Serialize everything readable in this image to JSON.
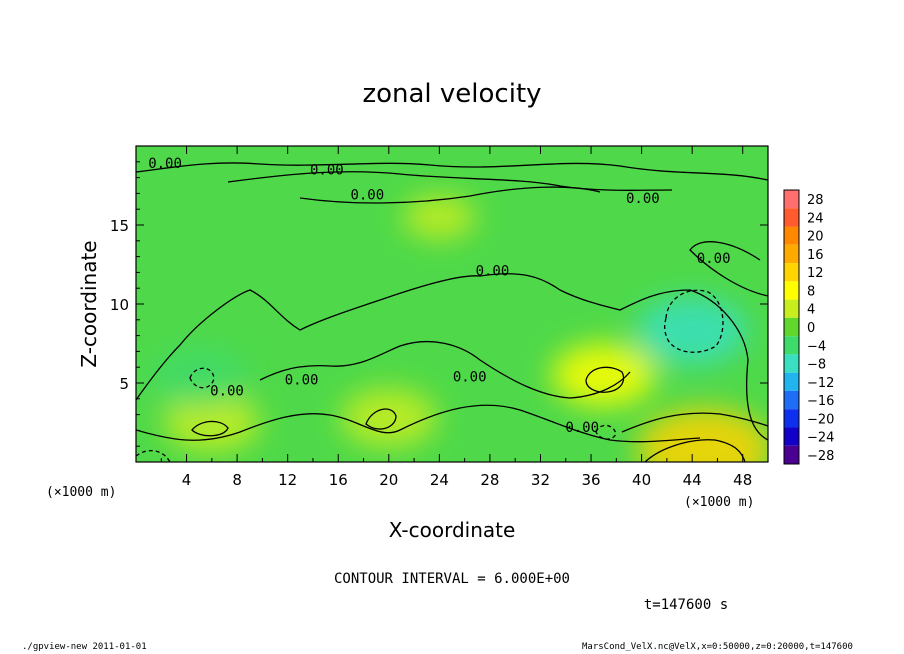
{
  "chart_data": {
    "type": "heatmap",
    "title": "zonal velocity",
    "xlabel": "X-coordinate",
    "ylabel": "Z-coordinate",
    "x_unit": "(×1000 m)",
    "y_unit": "(×1000 m)",
    "xlim": [
      0,
      50
    ],
    "ylim": [
      0,
      20
    ],
    "x_ticks": [
      4,
      8,
      12,
      16,
      20,
      24,
      28,
      32,
      36,
      40,
      44,
      48
    ],
    "y_ticks": [
      5,
      10,
      15
    ],
    "contour_interval_text": "CONTOUR INTERVAL = 6.000E+00",
    "time_text": "t=147600 s",
    "contour_label": "0.00",
    "contour_labels": [
      {
        "x": 2.3,
        "z": 18.6
      },
      {
        "x": 15.1,
        "z": 18.2
      },
      {
        "x": 18.3,
        "z": 16.6
      },
      {
        "x": 28.2,
        "z": 11.8
      },
      {
        "x": 40.1,
        "z": 16.4
      },
      {
        "x": 45.7,
        "z": 12.6
      },
      {
        "x": 7.2,
        "z": 4.2
      },
      {
        "x": 13.1,
        "z": 4.9
      },
      {
        "x": 26.4,
        "z": 5.1
      },
      {
        "x": 35.3,
        "z": 1.9
      }
    ],
    "colorbar": {
      "levels": [
        28,
        24,
        20,
        16,
        12,
        8,
        4,
        0,
        -4,
        -8,
        -12,
        -16,
        -20,
        -24,
        -28
      ],
      "colors": [
        "#ff6f6f",
        "#ff5b2e",
        "#ff8800",
        "#ffaa00",
        "#ffd400",
        "#ffff00",
        "#c9ee1e",
        "#5fd72c",
        "#3edb6a",
        "#39dfc0",
        "#22b4ee",
        "#1f6cf5",
        "#0f2fee",
        "#1200c8",
        "#4a0090"
      ]
    },
    "features": [
      {
        "x": 44,
        "z": 8.3,
        "value": -7
      },
      {
        "x": 37,
        "z": 5.5,
        "value": 6
      },
      {
        "x": 45,
        "z": 0.8,
        "value": 10
      },
      {
        "x": 20,
        "z": 2.8,
        "value": 5
      },
      {
        "x": 6,
        "z": 2.5,
        "value": 5
      },
      {
        "x": 5,
        "z": 5.4,
        "value": -5
      },
      {
        "x": 24,
        "z": 15.5,
        "value": 2
      }
    ]
  },
  "footer": {
    "left": "./gpview-new  2011-01-01",
    "right": "MarsCond_VelX.nc@VelX,x=0:50000,z=0:20000,t=147600"
  }
}
